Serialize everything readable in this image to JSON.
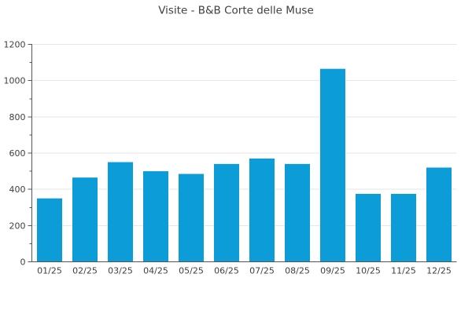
{
  "header": {
    "title": "Visite - B&B Corte delle Muse"
  },
  "colors": {
    "bar": "#0c9dd9",
    "grid": "#e6e6e6",
    "axis": "#555555",
    "text": "#3f3f3f",
    "background": "#ffffff"
  },
  "chart_data": {
    "type": "bar",
    "title": "Visite - B&B Corte delle Muse",
    "categories": [
      "01/25",
      "02/25",
      "03/25",
      "04/25",
      "05/25",
      "06/25",
      "07/25",
      "08/25",
      "09/25",
      "10/25",
      "11/25",
      "12/25"
    ],
    "values": [
      350,
      465,
      550,
      500,
      485,
      540,
      570,
      540,
      1065,
      375,
      375,
      520
    ],
    "series_name": "Visite",
    "xlabel": "",
    "ylabel": "",
    "ylim": [
      0,
      1200
    ],
    "ytick_major": 200,
    "ytick_minor": 100,
    "ytick_labels": [
      "0",
      "200",
      "400",
      "600",
      "800",
      "1000",
      "1200"
    ],
    "grid": "horizontal-major",
    "legend": "none"
  }
}
